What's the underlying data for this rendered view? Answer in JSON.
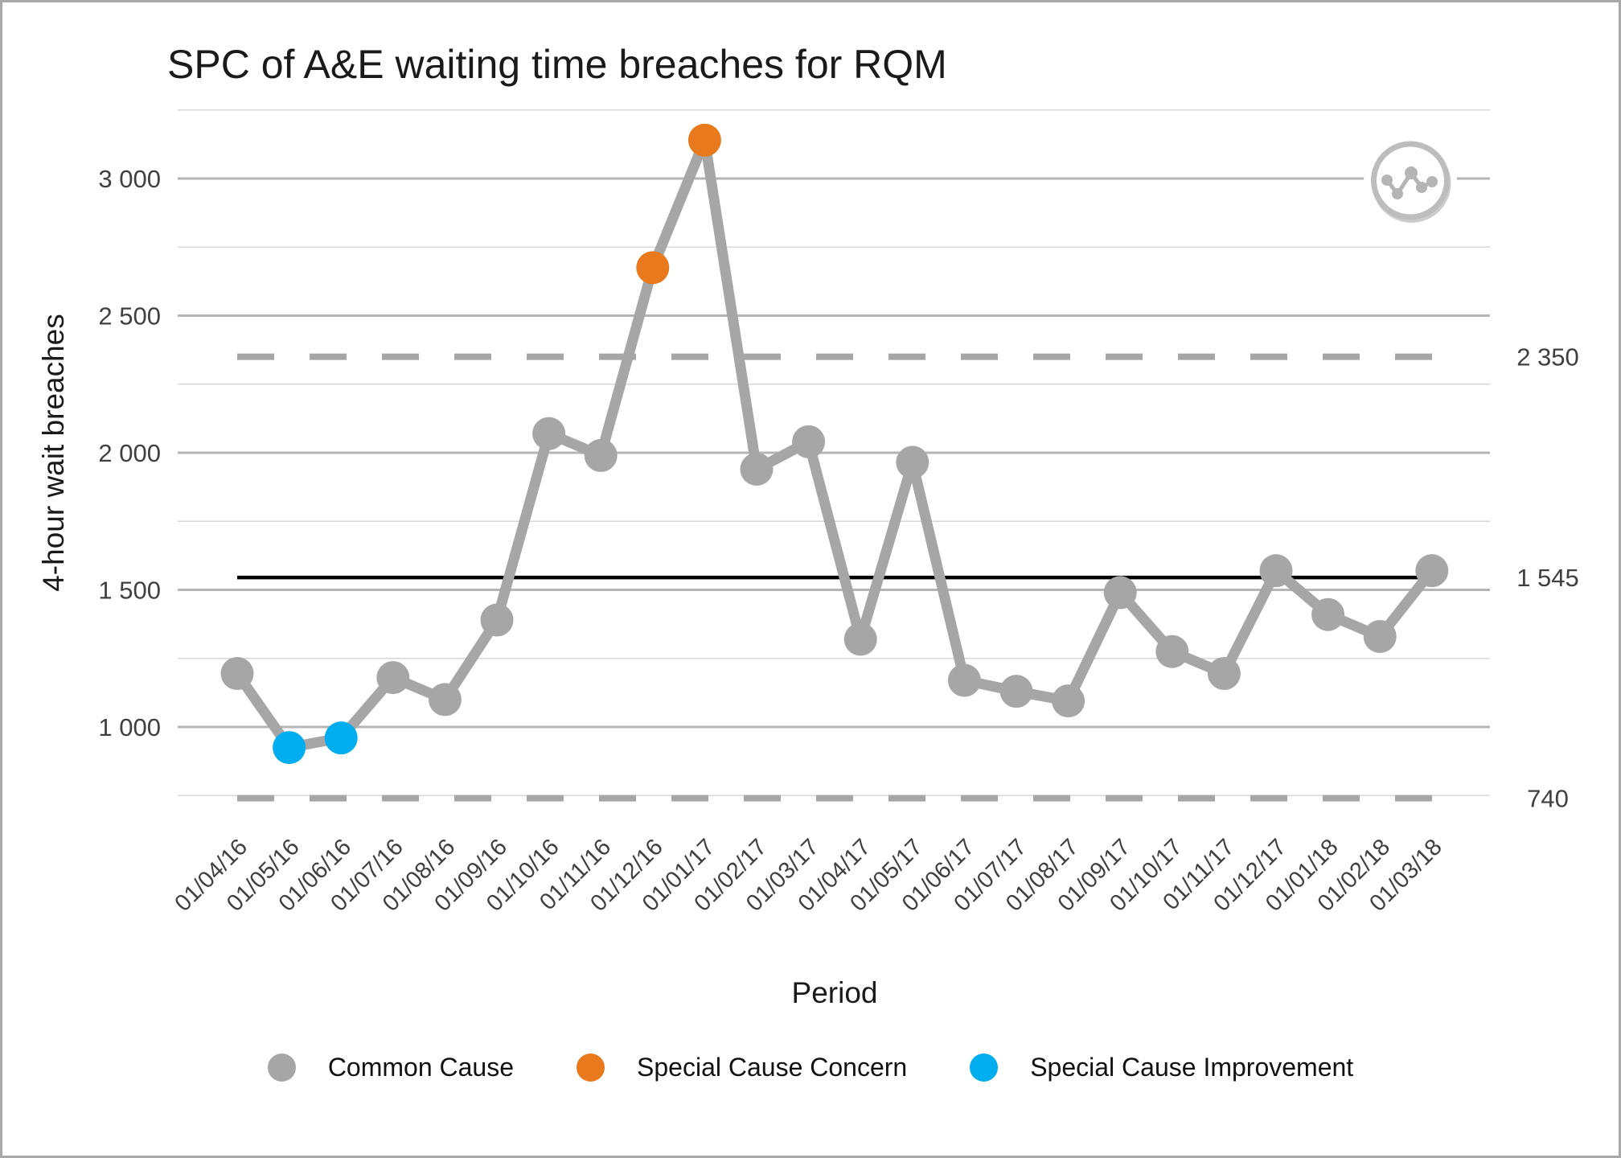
{
  "chart_data": {
    "type": "line",
    "title": "SPC of A&E waiting time breaches for RQM",
    "xlabel": "Period",
    "ylabel": "4-hour wait breaches",
    "x": [
      "01/04/16",
      "01/05/16",
      "01/06/16",
      "01/07/16",
      "01/08/16",
      "01/09/16",
      "01/10/16",
      "01/11/16",
      "01/12/16",
      "01/01/17",
      "01/02/17",
      "01/03/17",
      "01/04/17",
      "01/05/17",
      "01/06/17",
      "01/07/17",
      "01/08/17",
      "01/09/17",
      "01/10/17",
      "01/11/17",
      "01/12/17",
      "01/01/18",
      "01/02/18",
      "01/03/18"
    ],
    "series": [
      {
        "name": "4-hour wait breaches",
        "values": [
          1195,
          925,
          960,
          1180,
          1100,
          1390,
          2070,
          1990,
          2675,
          3140,
          1940,
          2040,
          1320,
          1965,
          1170,
          1130,
          1095,
          1490,
          1275,
          1195,
          1570,
          1410,
          1330,
          1570
        ]
      }
    ],
    "point_classification": [
      "common",
      "improvement",
      "improvement",
      "common",
      "common",
      "common",
      "common",
      "common",
      "concern",
      "concern",
      "common",
      "common",
      "common",
      "common",
      "common",
      "common",
      "common",
      "common",
      "common",
      "common",
      "common",
      "common",
      "common",
      "common"
    ],
    "control_lines": {
      "mean": {
        "value": 1545,
        "label": "1 545",
        "style": "solid-black"
      },
      "upper": {
        "value": 2350,
        "label": "2 350",
        "style": "dashed-gray"
      },
      "lower": {
        "value": 740,
        "label": "740",
        "style": "dashed-gray"
      }
    },
    "ylim": [
      620,
      3330
    ],
    "y_major_ticks": [
      {
        "value": 1000,
        "label": "1 000"
      },
      {
        "value": 1500,
        "label": "1 500"
      },
      {
        "value": 2000,
        "label": "2 000"
      },
      {
        "value": 2500,
        "label": "2 500"
      },
      {
        "value": 3000,
        "label": "3 000"
      }
    ],
    "y_minor_ticks": [
      750,
      1250,
      1750,
      2250,
      2750,
      3250
    ],
    "grid": true,
    "legend_position": "bottom"
  },
  "legend": {
    "items": [
      {
        "label": "Common Cause",
        "key": "common",
        "color": "#A6A6A6"
      },
      {
        "label": "Special Cause Concern",
        "key": "concern",
        "color": "#E87A1D"
      },
      {
        "label": "Special Cause Improvement",
        "key": "improvement",
        "color": "#00AEEF"
      }
    ]
  },
  "colors": {
    "common": "#A6A6A6",
    "concern": "#E87A1D",
    "improvement": "#00AEEF",
    "series_line": "#A6A6A6",
    "mean_line": "#000000",
    "limit_line": "#A6A6A6",
    "grid_major": "#b5b5b5",
    "grid_minor": "#d7d7d7",
    "tick_text": "#404040"
  },
  "icons": {
    "corner_badge": "line-variation-icon"
  }
}
